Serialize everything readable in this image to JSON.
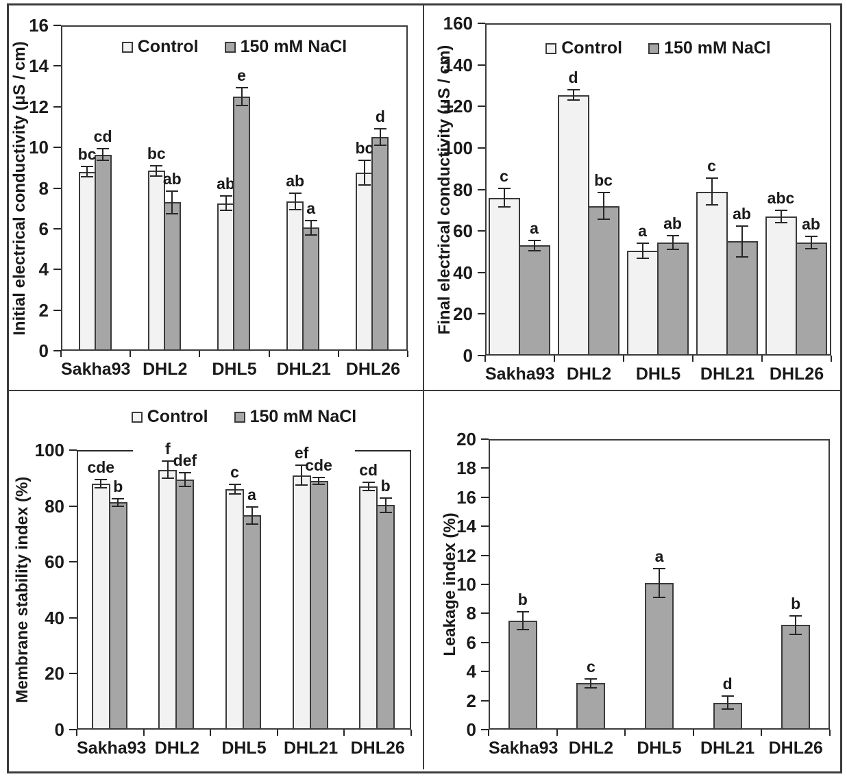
{
  "figure": {
    "description": "Four-panel bar chart figure comparing wheat genotypes under control and salt treatment",
    "colors": {
      "control_fill": "#f2f2f2",
      "nacl_fill": "#a6a6a6",
      "bar_border": "#3a3a3a",
      "axis": "#3b3b3b",
      "error_bar": "#262626",
      "text": "#1a1a1a",
      "background": "#ffffff"
    },
    "treatments": [
      "Control",
      "150 mM NaCl"
    ]
  },
  "chart_data": [
    {
      "id": "initial-ec",
      "type": "bar",
      "title": "",
      "ylabel": "Initial electrical conductivity (μS / cm)",
      "xlabel": "",
      "ylim": [
        0,
        16
      ],
      "ystep": 2,
      "grid": false,
      "legend": {
        "show": true,
        "position": "top-center-inside",
        "entries": [
          "Control",
          "150 mM NaCl"
        ]
      },
      "categories": [
        "Sakha93",
        "DHL2",
        "DHL5",
        "DHL21",
        "DHL26"
      ],
      "series": [
        {
          "name": "Control",
          "color": "#f2f2f2",
          "values": [
            8.8,
            8.85,
            7.25,
            7.35,
            8.75
          ],
          "errors": [
            0.25,
            0.25,
            0.35,
            0.4,
            0.6
          ],
          "sig_letters": [
            "bc",
            "bc",
            "ab",
            "ab",
            "bc"
          ]
        },
        {
          "name": "150 mM NaCl",
          "color": "#a6a6a6",
          "values": [
            9.65,
            7.3,
            12.5,
            6.05,
            10.5
          ],
          "errors": [
            0.3,
            0.55,
            0.45,
            0.35,
            0.4
          ],
          "sig_letters": [
            "cd",
            "ab",
            "e",
            "a",
            "d"
          ]
        }
      ]
    },
    {
      "id": "final-ec",
      "type": "bar",
      "title": "",
      "ylabel": "Final electrical conductivity (μS / cm)",
      "xlabel": "",
      "ylim": [
        0,
        160
      ],
      "ystep": 20,
      "grid": false,
      "legend": {
        "show": true,
        "position": "top-center-inside",
        "entries": [
          "Control",
          "150 mM NaCl"
        ]
      },
      "categories": [
        "Sakha93",
        "DHL2",
        "DHL5",
        "DHL21",
        "DHL26"
      ],
      "series": [
        {
          "name": "Control",
          "color": "#f2f2f2",
          "values": [
            76,
            125.5,
            50.5,
            79,
            67
          ],
          "errors": [
            4.5,
            2.5,
            3.5,
            6.5,
            3
          ],
          "sig_letters": [
            "c",
            "d",
            "a",
            "c",
            "abc"
          ]
        },
        {
          "name": "150 mM NaCl",
          "color": "#a6a6a6",
          "values": [
            53,
            72,
            54.5,
            55,
            54.5
          ],
          "errors": [
            2.5,
            6.5,
            3.3,
            7.5,
            3
          ],
          "sig_letters": [
            "a",
            "bc",
            "ab",
            "ab",
            "ab"
          ]
        }
      ]
    },
    {
      "id": "membrane-stability-index",
      "type": "bar",
      "title": "",
      "ylabel": "Membrane stability index (%)",
      "xlabel": "",
      "ylim": [
        0,
        100
      ],
      "ystep": 20,
      "grid": false,
      "legend": {
        "show": true,
        "position": "above-plot-center",
        "entries": [
          "Control",
          "150 mM NaCl"
        ]
      },
      "categories": [
        "Sakha93",
        "DHL2",
        "DHL5",
        "DHL21",
        "DHL26"
      ],
      "series": [
        {
          "name": "Control",
          "color": "#f2f2f2",
          "values": [
            88,
            93,
            86,
            91,
            87
          ],
          "errors": [
            1.5,
            3,
            1.7,
            3.5,
            1.5
          ],
          "sig_letters": [
            "cde",
            "f",
            "c",
            "ef",
            "cd"
          ]
        },
        {
          "name": "150 mM NaCl",
          "color": "#a6a6a6",
          "values": [
            81.3,
            89.5,
            76.6,
            89,
            80.3
          ],
          "errors": [
            1.3,
            2.5,
            3,
            1.2,
            2.5
          ],
          "sig_letters": [
            "b",
            "def",
            "a",
            "cde",
            "b"
          ]
        }
      ]
    },
    {
      "id": "leakage-index",
      "type": "bar",
      "title": "",
      "ylabel": "Leakage index (%)",
      "xlabel": "",
      "ylim": [
        0,
        20
      ],
      "ystep": 2,
      "grid": false,
      "legend": {
        "show": false,
        "entries": []
      },
      "categories": [
        "Sakha93",
        "DHL2",
        "DHL5",
        "DHL21",
        "DHL26"
      ],
      "series": [
        {
          "name": "150 mM NaCl",
          "color": "#a6a6a6",
          "values": [
            7.5,
            3.2,
            10.1,
            1.85,
            7.2
          ],
          "errors": [
            0.6,
            0.3,
            1.0,
            0.45,
            0.65
          ],
          "sig_letters": [
            "b",
            "c",
            "a",
            "d",
            "b"
          ]
        }
      ]
    }
  ]
}
